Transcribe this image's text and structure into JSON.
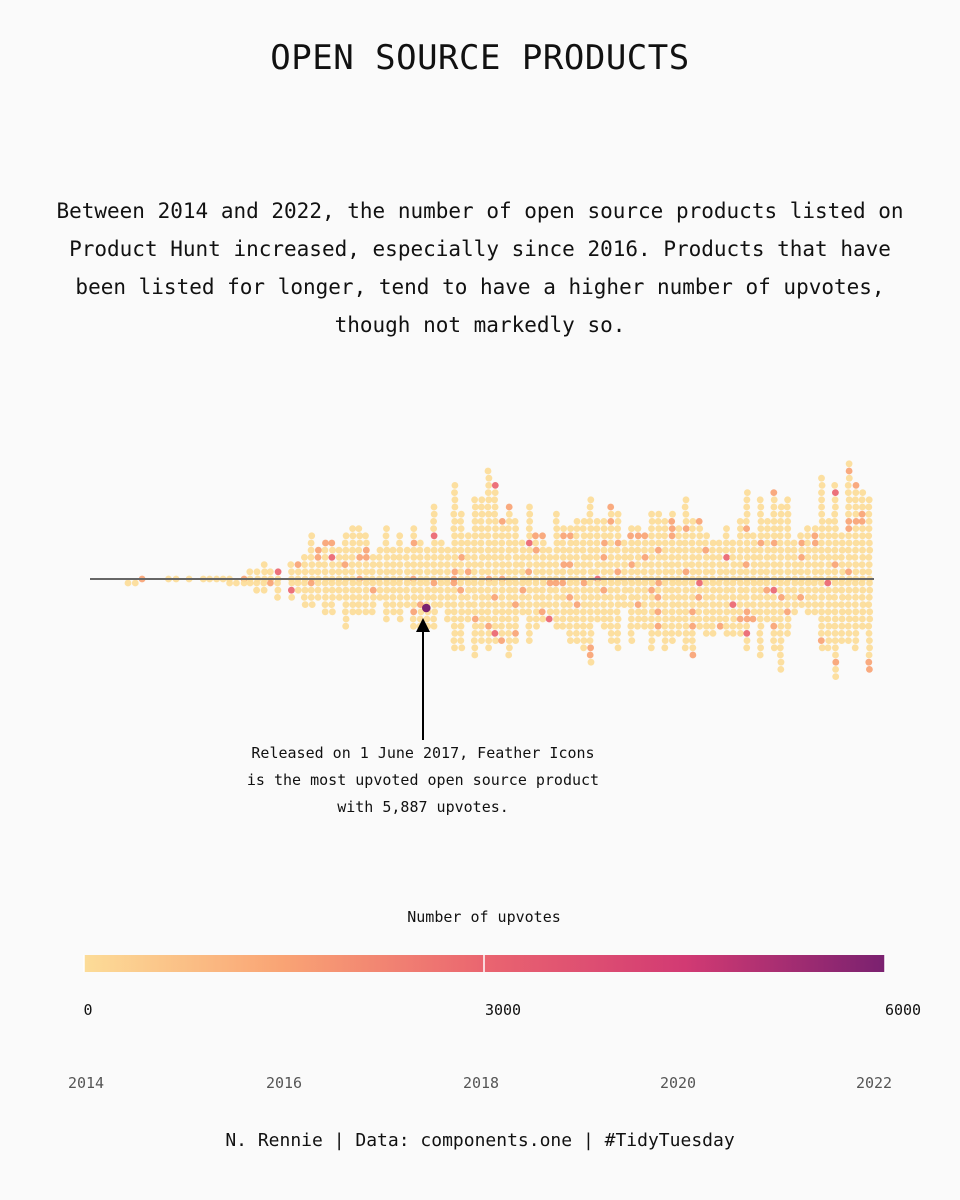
{
  "title": "OPEN SOURCE PRODUCTS",
  "subtitle": "Between 2014 and 2022, the number of open source products listed on Product Hunt increased, especially since 2016. Products that have been listed for longer, tend to have a higher number of upvotes, though not markedly so.",
  "caption": "N. Rennie | Data: components.one | #TidyTuesday",
  "chart_data": {
    "type": "scatter",
    "title": "OPEN SOURCE PRODUCTS",
    "xlabel": "",
    "ylabel": "",
    "x_ticks": [
      "2014",
      "2016",
      "2018",
      "2020",
      "2022"
    ],
    "xlim": [
      2014,
      2022
    ],
    "grid": false,
    "colors": [
      "#fcdc98",
      "#f9a374",
      "#ea6570",
      "#d23a73",
      "#7a2170"
    ],
    "yearly_density": [
      {
        "year": 2014.0,
        "count": 4
      },
      {
        "year": 2014.5,
        "count": 6
      },
      {
        "year": 2015.0,
        "count": 10
      },
      {
        "year": 2015.5,
        "count": 18
      },
      {
        "year": 2016.0,
        "count": 60
      },
      {
        "year": 2016.5,
        "count": 120
      },
      {
        "year": 2017.0,
        "count": 110
      },
      {
        "year": 2017.5,
        "count": 170
      },
      {
        "year": 2018.0,
        "count": 210
      },
      {
        "year": 2018.5,
        "count": 190
      },
      {
        "year": 2019.0,
        "count": 200
      },
      {
        "year": 2019.5,
        "count": 185
      },
      {
        "year": 2020.0,
        "count": 180
      },
      {
        "year": 2020.5,
        "count": 175
      },
      {
        "year": 2021.0,
        "count": 190
      },
      {
        "year": 2021.5,
        "count": 215
      },
      {
        "year": 2022.0,
        "count": 205
      }
    ],
    "highlight": {
      "name": "Feather Icons",
      "date": "1 June 2017",
      "year": 2017.42,
      "upvotes": 5887
    },
    "annotation": [
      "Released on 1 June 2017, Feather Icons",
      "is the most upvoted open source product",
      "with 5,887 upvotes."
    ],
    "legend": {
      "title": "Number of upvotes",
      "ticks": [
        "0",
        "3000",
        "6000"
      ],
      "range": [
        0,
        6000
      ],
      "placement": "bottom"
    }
  }
}
